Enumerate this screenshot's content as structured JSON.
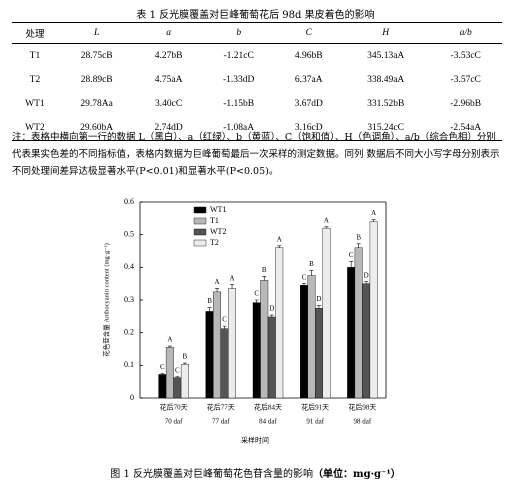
{
  "table": {
    "title": "表 1 反光膜覆盖对巨峰葡萄花后 98d 果皮着色的影响",
    "header": [
      "处理",
      "L",
      "a",
      "b",
      "C",
      "H",
      "a/b"
    ],
    "rows": [
      [
        "T1",
        "28.75cB",
        "4.27bB",
        "-1.21cC",
        "4.96bB",
        "345.13aA",
        "-3.53cC"
      ],
      [
        "T2",
        "28.89cB",
        "4.75aA",
        "-1.33dD",
        "6.37aA",
        "338.49aA",
        "-3.57cC"
      ],
      [
        "WT1",
        "29.78Aa",
        "3.40cC",
        "-1.15bB",
        "3.67dD",
        "331.52bB",
        "-2.96bB"
      ],
      [
        "WT2",
        "29.60bA",
        "2.74dD",
        "-1.08aA",
        "3.16cD",
        "315.24cC",
        "-2.54aA"
      ]
    ],
    "note": "注：表格中横向第一行的数据 L（黑白）、a（红绿）、b（黄蓝）、C（饱和值）、H（色调角）、a/b（综合色相）分别代表果实色差的不同指标值，表格内数据为巨峰葡萄最后一次采样的测定数据。同列 数据后不同大小写字母分别表示不同处理间差异达极显著水平(P<0.01)和显著水平(P<0.05)。"
  },
  "chart_data": {
    "type": "bar",
    "ylabel": "花色苷含量 Anthocyanin content (mg·g⁻¹)",
    "xlabel": "采样时间",
    "categories": [
      "花后70天",
      "花后77天",
      "花后84天",
      "花后91天",
      "花后98天"
    ],
    "categories_en": [
      "70 daf",
      "77 daf",
      "84 daf",
      "91 daf",
      "98 daf"
    ],
    "ylim": [
      0,
      0.6
    ],
    "yticks": [
      0,
      0.1,
      0.2,
      0.3,
      0.4,
      0.5,
      0.6
    ],
    "legend": "upper left",
    "series": [
      {
        "name": "WT1",
        "color": "#000000",
        "values": [
          0.072,
          0.265,
          0.292,
          0.345,
          0.4
        ],
        "errors": [
          0.003,
          0.012,
          0.008,
          0.005,
          0.018
        ],
        "letters": [
          "C",
          "B",
          "C",
          "C",
          "C"
        ]
      },
      {
        "name": "T1",
        "color": "#b8b8b8",
        "values": [
          0.155,
          0.325,
          0.36,
          0.375,
          0.46
        ],
        "errors": [
          0.004,
          0.01,
          0.012,
          0.015,
          0.012
        ],
        "letters": [
          "A",
          "A",
          "B",
          "B",
          "B"
        ]
      },
      {
        "name": "WT2",
        "color": "#555555",
        "values": [
          0.062,
          0.212,
          0.248,
          0.275,
          0.35
        ],
        "errors": [
          0.003,
          0.008,
          0.006,
          0.008,
          0.006
        ],
        "letters": [
          "C",
          "C",
          "D",
          "D",
          "D"
        ]
      },
      {
        "name": "T2",
        "color": "#ececec",
        "values": [
          0.103,
          0.335,
          0.46,
          0.52,
          0.54
        ],
        "errors": [
          0.004,
          0.012,
          0.006,
          0.004,
          0.006
        ],
        "letters": [
          "B",
          "A",
          "A",
          "A",
          "A"
        ]
      }
    ]
  },
  "figure": {
    "caption": "图 1 反光膜覆盖对巨峰葡萄花色苷含量的影响",
    "caption_unit": "（单位：mg·g⁻¹）"
  }
}
